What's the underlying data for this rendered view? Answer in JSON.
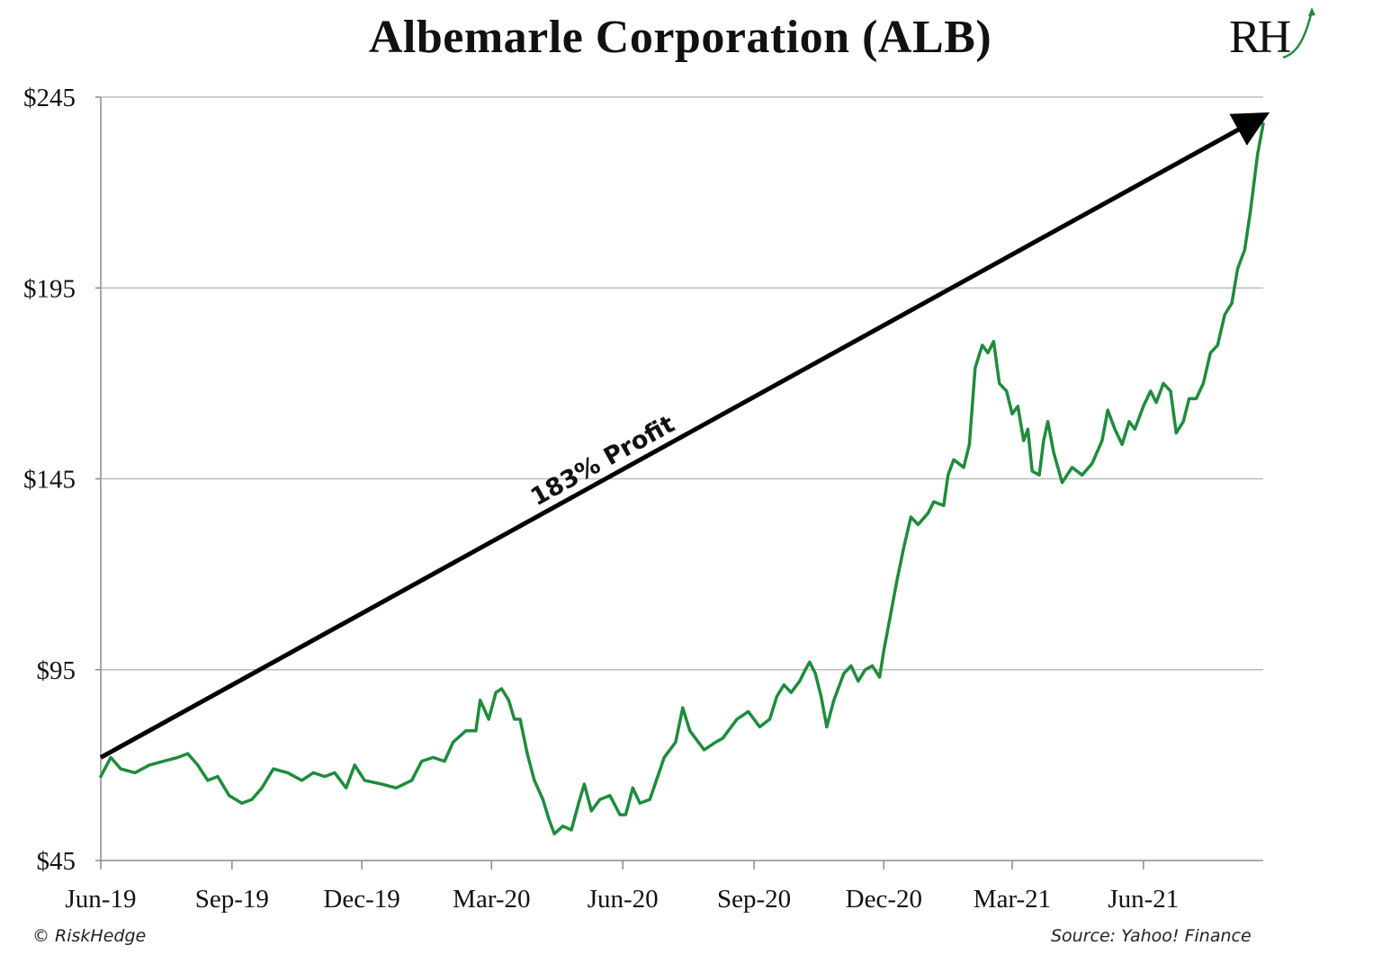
{
  "title": "Albemarle Corporation (ALB)",
  "logo": {
    "text": "RH",
    "icon": "riskhedge-logo-icon"
  },
  "footer": {
    "copyright": "© RiskHedge",
    "source": "Source: Yahoo! Finance"
  },
  "colors": {
    "line": "#1e8c3c",
    "arrow": "#000000",
    "grid": "#bdbdbd",
    "axis": "#8c8c8c",
    "text": "#111111"
  },
  "chart_data": {
    "type": "line",
    "title": "Albemarle Corporation (ALB)",
    "xlabel": "",
    "ylabel": "",
    "grid": true,
    "ylim": [
      45,
      245
    ],
    "y_ticks": [
      245,
      195,
      145,
      95,
      45
    ],
    "y_tick_labels": [
      "$245",
      "$195",
      "$145",
      "$95",
      "$45"
    ],
    "x_ticks": [
      "2019-06-01",
      "2019-09-01",
      "2019-12-01",
      "2020-03-01",
      "2020-06-01",
      "2020-09-01",
      "2020-12-01",
      "2021-03-01",
      "2021-06-01"
    ],
    "x_tick_labels": [
      "Jun-19",
      "Sep-19",
      "Dec-19",
      "Mar-20",
      "Jun-20",
      "Sep-20",
      "Dec-20",
      "Mar-21",
      "Jun-21"
    ],
    "xlim": [
      "2019-06-01",
      "2021-08-24"
    ],
    "series": [
      {
        "points": [
          [
            "2019-06-01",
            67
          ],
          [
            "2019-06-08",
            72
          ],
          [
            "2019-06-15",
            69
          ],
          [
            "2019-06-25",
            68
          ],
          [
            "2019-07-05",
            70
          ],
          [
            "2019-07-15",
            71
          ],
          [
            "2019-07-25",
            72
          ],
          [
            "2019-08-01",
            73
          ],
          [
            "2019-08-08",
            70
          ],
          [
            "2019-08-15",
            66
          ],
          [
            "2019-08-22",
            67
          ],
          [
            "2019-08-30",
            62
          ],
          [
            "2019-09-08",
            60
          ],
          [
            "2019-09-15",
            61
          ],
          [
            "2019-09-22",
            64
          ],
          [
            "2019-09-30",
            69
          ],
          [
            "2019-10-10",
            68
          ],
          [
            "2019-10-20",
            66
          ],
          [
            "2019-10-28",
            68
          ],
          [
            "2019-11-05",
            67
          ],
          [
            "2019-11-12",
            68
          ],
          [
            "2019-11-20",
            64
          ],
          [
            "2019-11-26",
            70
          ],
          [
            "2019-12-03",
            66
          ],
          [
            "2019-12-15",
            65
          ],
          [
            "2019-12-25",
            64
          ],
          [
            "2020-01-05",
            66
          ],
          [
            "2020-01-12",
            71
          ],
          [
            "2020-01-20",
            72
          ],
          [
            "2020-01-28",
            71
          ],
          [
            "2020-02-03",
            76
          ],
          [
            "2020-02-12",
            79
          ],
          [
            "2020-02-19",
            79
          ],
          [
            "2020-02-22",
            87
          ],
          [
            "2020-02-28",
            82
          ],
          [
            "2020-03-04",
            89
          ],
          [
            "2020-03-08",
            90
          ],
          [
            "2020-03-13",
            87
          ],
          [
            "2020-03-17",
            82
          ],
          [
            "2020-03-21",
            82
          ],
          [
            "2020-03-26",
            73
          ],
          [
            "2020-03-31",
            66
          ],
          [
            "2020-04-06",
            61
          ],
          [
            "2020-04-10",
            56
          ],
          [
            "2020-04-14",
            52
          ],
          [
            "2020-04-20",
            54
          ],
          [
            "2020-04-26",
            53
          ],
          [
            "2020-05-01",
            60
          ],
          [
            "2020-05-05",
            65
          ],
          [
            "2020-05-10",
            58
          ],
          [
            "2020-05-16",
            61
          ],
          [
            "2020-05-23",
            62
          ],
          [
            "2020-05-30",
            57
          ],
          [
            "2020-06-03",
            57
          ],
          [
            "2020-06-08",
            64
          ],
          [
            "2020-06-13",
            60
          ],
          [
            "2020-06-20",
            61
          ],
          [
            "2020-06-30",
            72
          ],
          [
            "2020-07-08",
            76
          ],
          [
            "2020-07-13",
            85
          ],
          [
            "2020-07-18",
            79
          ],
          [
            "2020-07-28",
            74
          ],
          [
            "2020-08-05",
            76
          ],
          [
            "2020-08-10",
            77
          ],
          [
            "2020-08-20",
            82
          ],
          [
            "2020-08-28",
            84
          ],
          [
            "2020-09-05",
            80
          ],
          [
            "2020-09-12",
            82
          ],
          [
            "2020-09-17",
            88
          ],
          [
            "2020-09-22",
            91
          ],
          [
            "2020-09-27",
            89
          ],
          [
            "2020-10-03",
            92
          ],
          [
            "2020-10-07",
            95
          ],
          [
            "2020-10-10",
            97
          ],
          [
            "2020-10-14",
            94
          ],
          [
            "2020-10-18",
            88
          ],
          [
            "2020-10-22",
            80
          ],
          [
            "2020-10-27",
            87
          ],
          [
            "2020-11-03",
            94
          ],
          [
            "2020-11-08",
            96
          ],
          [
            "2020-11-13",
            92
          ],
          [
            "2020-11-18",
            95
          ],
          [
            "2020-11-23",
            96
          ],
          [
            "2020-11-28",
            93
          ],
          [
            "2020-12-01",
            100
          ],
          [
            "2020-12-05",
            108
          ],
          [
            "2020-12-10",
            118
          ],
          [
            "2020-12-15",
            127
          ],
          [
            "2020-12-20",
            135
          ],
          [
            "2020-12-25",
            133
          ],
          [
            "2021-01-01",
            136
          ],
          [
            "2021-01-05",
            139
          ],
          [
            "2021-01-12",
            138
          ],
          [
            "2021-01-15",
            146
          ],
          [
            "2021-01-19",
            150
          ],
          [
            "2021-01-26",
            148
          ],
          [
            "2021-01-30",
            154
          ],
          [
            "2021-02-03",
            174
          ],
          [
            "2021-02-08",
            180
          ],
          [
            "2021-02-12",
            178
          ],
          [
            "2021-02-16",
            181
          ],
          [
            "2021-02-20",
            170
          ],
          [
            "2021-02-25",
            168
          ],
          [
            "2021-03-01",
            162
          ],
          [
            "2021-03-05",
            164
          ],
          [
            "2021-03-09",
            155
          ],
          [
            "2021-03-12",
            158
          ],
          [
            "2021-03-15",
            147
          ],
          [
            "2021-03-20",
            146
          ],
          [
            "2021-03-23",
            155
          ],
          [
            "2021-03-26",
            160
          ],
          [
            "2021-03-30",
            152
          ],
          [
            "2021-04-05",
            144
          ],
          [
            "2021-04-12",
            148
          ],
          [
            "2021-04-19",
            146
          ],
          [
            "2021-04-26",
            149
          ],
          [
            "2021-05-03",
            155
          ],
          [
            "2021-05-07",
            163
          ],
          [
            "2021-05-12",
            158
          ],
          [
            "2021-05-17",
            154
          ],
          [
            "2021-05-22",
            160
          ],
          [
            "2021-05-26",
            158
          ],
          [
            "2021-06-01",
            164
          ],
          [
            "2021-06-06",
            168
          ],
          [
            "2021-06-10",
            165
          ],
          [
            "2021-06-15",
            170
          ],
          [
            "2021-06-20",
            168
          ],
          [
            "2021-06-24",
            157
          ],
          [
            "2021-06-29",
            160
          ],
          [
            "2021-07-03",
            166
          ],
          [
            "2021-07-08",
            166
          ],
          [
            "2021-07-13",
            170
          ],
          [
            "2021-07-18",
            178
          ],
          [
            "2021-07-23",
            180
          ],
          [
            "2021-07-28",
            188
          ],
          [
            "2021-08-02",
            191
          ],
          [
            "2021-08-06",
            200
          ],
          [
            "2021-08-11",
            205
          ],
          [
            "2021-08-15",
            215
          ],
          [
            "2021-08-20",
            230
          ],
          [
            "2021-08-24",
            238
          ]
        ]
      }
    ],
    "annotations": [
      {
        "type": "arrow",
        "text": "183% Profit",
        "from": [
          "2019-06-01",
          72
        ],
        "to": [
          "2021-08-24",
          240
        ]
      }
    ]
  }
}
